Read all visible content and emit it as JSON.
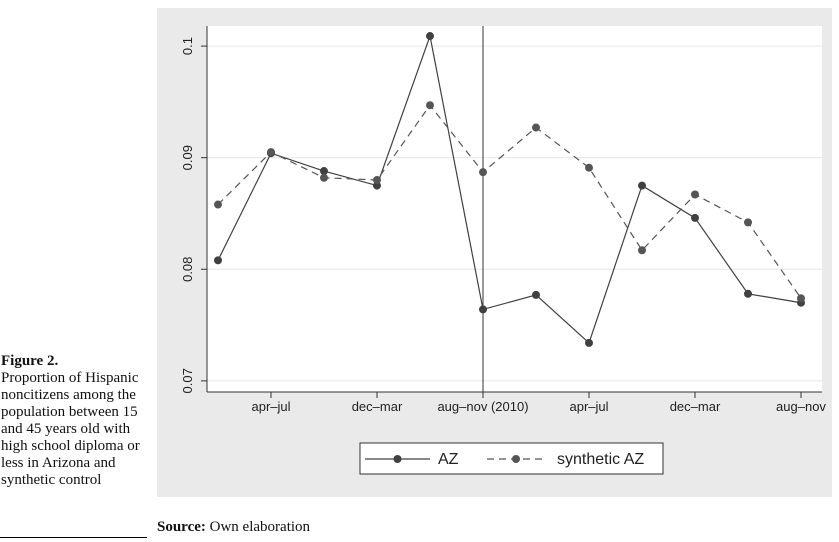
{
  "chart_data": {
    "type": "line",
    "categories": [
      null,
      "apr–jul",
      null,
      "dec–mar",
      null,
      "aug–nov (2010)",
      null,
      "apr–jul",
      null,
      "dec–mar",
      null,
      "aug–nov"
    ],
    "series": [
      {
        "name": "AZ",
        "color": "#404040",
        "dash": false,
        "values": [
          0.0808,
          0.0904,
          0.0888,
          0.0875,
          0.1009,
          0.0764,
          0.0777,
          0.0734,
          0.0875,
          0.0846,
          0.0778,
          0.077
        ]
      },
      {
        "name": "synthetic AZ",
        "color": "#555555",
        "dash": true,
        "values": [
          0.0858,
          0.0905,
          0.0882,
          0.088,
          0.0947,
          0.0887,
          0.0927,
          0.0891,
          0.0817,
          0.0867,
          0.0842,
          0.0774
        ]
      }
    ],
    "ylim": [
      0.069,
      0.1018
    ],
    "yticks": [
      0.07,
      0.08,
      0.09,
      0.1
    ],
    "grid": true,
    "vline_index": 5,
    "legend": "bottom"
  },
  "figure_label": "Figure 2.",
  "caption": "Proportion of Hispanic noncitizens among the population between 15 and 45 years old with high school diploma or less in Arizona and synthetic control",
  "source_label": "Source:",
  "source_text": "Own elaboration"
}
